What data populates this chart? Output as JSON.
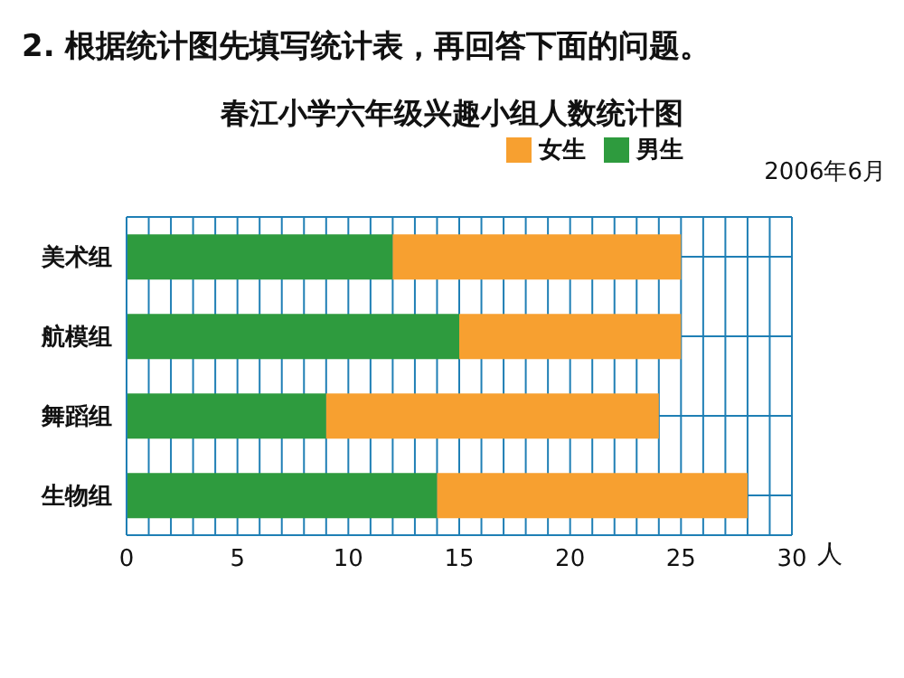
{
  "chart_data": {
    "type": "bar",
    "orientation": "horizontal",
    "stacked": true,
    "subtitle": "2. 根据统计图先填写统计表，再回答下面的问题。",
    "title": "春江小学六年级兴趣小组人数统计图",
    "xlabel": "人",
    "annotations": [
      "2006年6月"
    ],
    "categories": [
      "美术组",
      "航模组",
      "舞蹈组",
      "生物组"
    ],
    "series": [
      {
        "name": "男生",
        "color": "#2e9b3e",
        "values": [
          12,
          15,
          9,
          14
        ]
      },
      {
        "name": "女生",
        "color": "#f7a030",
        "values": [
          13,
          10,
          15,
          14
        ]
      }
    ],
    "xlim": [
      0,
      30
    ],
    "xticks": [
      0,
      {
        "value": 1,
        "label": null
      },
      {
        "value": 2,
        "label": null
      },
      {
        "value": 3,
        "label": null
      },
      {
        "value": 4,
        "label": null
      },
      5,
      {
        "value": 6,
        "label": null
      },
      {
        "value": 7,
        "label": null
      },
      {
        "value": 8,
        "label": null
      },
      {
        "value": 9,
        "label": null
      },
      10,
      {
        "value": 11,
        "label": null
      },
      {
        "value": 12,
        "label": null
      },
      {
        "value": 13,
        "label": null
      },
      {
        "value": 14,
        "label": null
      },
      15,
      {
        "value": 16,
        "label": null
      },
      {
        "value": 17,
        "label": null
      },
      {
        "value": 18,
        "label": null
      },
      {
        "value": 19,
        "label": null
      },
      20,
      {
        "value": 21,
        "label": null
      },
      {
        "value": 22,
        "label": null
      },
      {
        "value": 23,
        "label": null
      },
      {
        "value": 24,
        "label": null
      },
      25,
      {
        "value": 26,
        "label": null
      },
      {
        "value": 27,
        "label": null
      },
      {
        "value": 28,
        "label": null
      },
      {
        "value": 29,
        "label": null
      },
      30
    ],
    "grid": true,
    "legend": "top right"
  }
}
